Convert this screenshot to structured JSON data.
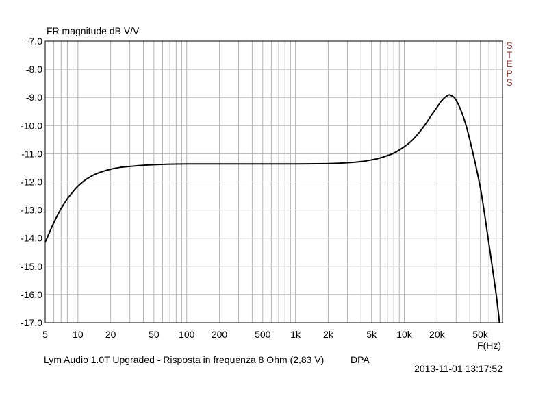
{
  "chart_data": {
    "type": "line",
    "title": "",
    "ylabel": "FR magnitude dB V/V",
    "xlabel": "F(Hz)",
    "xscale": "log",
    "xlim": [
      5,
      80000
    ],
    "ylim": [
      -17.0,
      -7.0
    ],
    "grid": true,
    "x_ticks": [
      5,
      10,
      20,
      50,
      100,
      200,
      500,
      1000,
      2000,
      5000,
      10000,
      20000,
      50000
    ],
    "x_tick_labels": [
      "5",
      "10",
      "20",
      "50",
      "100",
      "200",
      "500",
      "1k",
      "2k",
      "5k",
      "10k",
      "20k",
      "50k"
    ],
    "y_ticks": [
      -7.0,
      -8.0,
      -9.0,
      -10.0,
      -11.0,
      -12.0,
      -13.0,
      -14.0,
      -15.0,
      -16.0,
      -17.0
    ],
    "y_tick_labels": [
      "-7.0",
      "-8.0",
      "-9.0",
      "-10.0",
      "-11.0",
      "-12.0",
      "-13.0",
      "-14.0",
      "-15.0",
      "-16.0",
      "-17.0"
    ],
    "series": [
      {
        "color": "#000000",
        "x": [
          5,
          6,
          7,
          8,
          9,
          10,
          12,
          15,
          20,
          25,
          30,
          40,
          50,
          70,
          100,
          200,
          500,
          1000,
          2000,
          3000,
          4000,
          5000,
          6000,
          8000,
          10000,
          12000,
          15000,
          18000,
          20000,
          22000,
          25000,
          27000,
          30000,
          35000,
          40000,
          50000,
          60000,
          70000,
          75000
        ],
        "y": [
          -14.15,
          -13.45,
          -12.95,
          -12.6,
          -12.35,
          -12.15,
          -11.9,
          -11.7,
          -11.55,
          -11.48,
          -11.45,
          -11.41,
          -11.39,
          -11.37,
          -11.36,
          -11.36,
          -11.36,
          -11.36,
          -11.35,
          -11.32,
          -11.28,
          -11.22,
          -11.15,
          -10.98,
          -10.75,
          -10.5,
          -10.05,
          -9.6,
          -9.35,
          -9.12,
          -8.93,
          -8.93,
          -9.1,
          -9.7,
          -10.5,
          -12.2,
          -14.2,
          -16.0,
          -17.0
        ]
      }
    ]
  },
  "caption": "Lym Audio 1.0T Upgraded - Risposta in frequenza 8 Ohm (2,83 V)",
  "brand": "DPA",
  "timestamp": "2013-11-01 13:17:52",
  "watermark": "STEPS"
}
